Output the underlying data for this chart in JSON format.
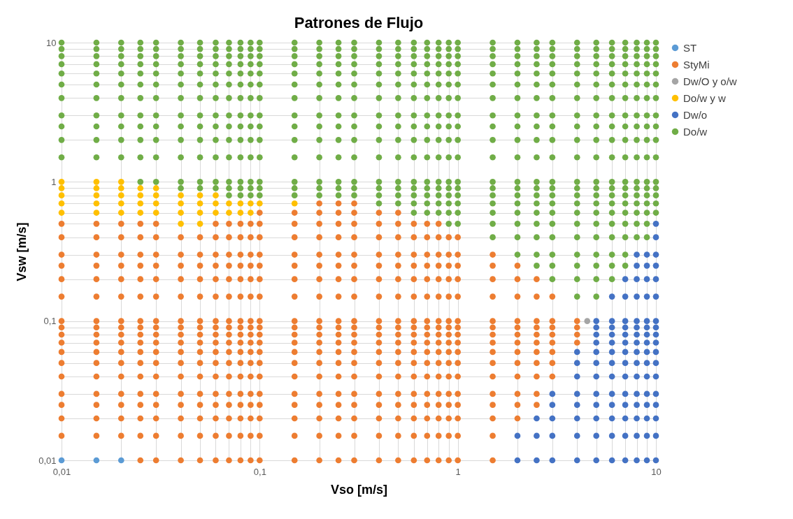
{
  "chart_data": {
    "type": "scatter",
    "title": "Patrones de Flujo",
    "xlabel": "Vso [m/s]",
    "ylabel": "Vsw [m/s]",
    "log": "xy",
    "grid": true,
    "legend": "right",
    "marker": "circle",
    "xlim": [
      0.01,
      10
    ],
    "ylim": [
      0.01,
      10
    ],
    "xticks": [
      {
        "value": 0.01,
        "label": "0,01"
      },
      {
        "value": 0.02,
        "label": null
      },
      {
        "value": 0.03,
        "label": null
      },
      {
        "value": 0.04,
        "label": null
      },
      {
        "value": 0.05,
        "label": null
      },
      {
        "value": 0.06,
        "label": null
      },
      {
        "value": 0.07,
        "label": null
      },
      {
        "value": 0.08,
        "label": null
      },
      {
        "value": 0.09,
        "label": null
      },
      {
        "value": 0.1,
        "label": "0,1"
      },
      {
        "value": 0.2,
        "label": null
      },
      {
        "value": 0.3,
        "label": null
      },
      {
        "value": 0.4,
        "label": null
      },
      {
        "value": 0.5,
        "label": null
      },
      {
        "value": 0.6,
        "label": null
      },
      {
        "value": 0.7,
        "label": null
      },
      {
        "value": 0.8,
        "label": null
      },
      {
        "value": 0.9,
        "label": null
      },
      1,
      {
        "value": 2,
        "label": null
      },
      {
        "value": 3,
        "label": null
      },
      {
        "value": 4,
        "label": null
      },
      {
        "value": 5,
        "label": null
      },
      {
        "value": 6,
        "label": null
      },
      {
        "value": 7,
        "label": null
      },
      {
        "value": 8,
        "label": null
      },
      {
        "value": 9,
        "label": null
      },
      10
    ],
    "yticks": [
      {
        "value": 0.01,
        "label": "0,01"
      },
      {
        "value": 0.02,
        "label": null
      },
      {
        "value": 0.03,
        "label": null
      },
      {
        "value": 0.04,
        "label": null
      },
      {
        "value": 0.05,
        "label": null
      },
      {
        "value": 0.06,
        "label": null
      },
      {
        "value": 0.07,
        "label": null
      },
      {
        "value": 0.08,
        "label": null
      },
      {
        "value": 0.09,
        "label": null
      },
      {
        "value": 0.1,
        "label": "0,1"
      },
      {
        "value": 0.2,
        "label": null
      },
      {
        "value": 0.3,
        "label": null
      },
      {
        "value": 0.4,
        "label": null
      },
      {
        "value": 0.5,
        "label": null
      },
      {
        "value": 0.6,
        "label": null
      },
      {
        "value": 0.7,
        "label": null
      },
      {
        "value": 0.8,
        "label": null
      },
      {
        "value": 0.9,
        "label": null
      },
      1,
      {
        "value": 2,
        "label": null
      },
      {
        "value": 3,
        "label": null
      },
      {
        "value": 4,
        "label": null
      },
      {
        "value": 5,
        "label": null
      },
      {
        "value": 6,
        "label": null
      },
      {
        "value": 7,
        "label": null
      },
      {
        "value": 8,
        "label": null
      },
      {
        "value": 9,
        "label": null
      },
      10
    ],
    "series": [
      {
        "name": "ST",
        "color": "#5b9bd5",
        "x": [
          0.01,
          0.015,
          0.02
        ],
        "values": [
          0.01,
          0.01,
          0.01
        ]
      },
      {
        "name": "StyMi",
        "color": "#ed7d31",
        "x": [
          0.01,
          0.01,
          0.01,
          0.01,
          0.01,
          0.01,
          0.01,
          0.01,
          0.01,
          0.01,
          0.01,
          0.01,
          0.01,
          0.01,
          0.01,
          0.01,
          0.01,
          0.015,
          0.015,
          0.015,
          0.015,
          0.015,
          0.015,
          0.015,
          0.015,
          0.015,
          0.015,
          0.015,
          0.015,
          0.015,
          0.015,
          0.015,
          0.015,
          0.015,
          0.02,
          0.02,
          0.02,
          0.02,
          0.02,
          0.02,
          0.02,
          0.02,
          0.02,
          0.02,
          0.02,
          0.02,
          0.02,
          0.02,
          0.02,
          0.02,
          0.02,
          0.025,
          0.025,
          0.025,
          0.025,
          0.025,
          0.025,
          0.025,
          0.025,
          0.025,
          0.025,
          0.025,
          0.025,
          0.025,
          0.025,
          0.025,
          0.025,
          0.025,
          0.025,
          0.03,
          0.03,
          0.03,
          0.03,
          0.03,
          0.03,
          0.03,
          0.03,
          0.03,
          0.03,
          0.03,
          0.03,
          0.03,
          0.03,
          0.03,
          0.03,
          0.03,
          0.03,
          0.04,
          0.04,
          0.04,
          0.04,
          0.04,
          0.04,
          0.04,
          0.04,
          0.04,
          0.04,
          0.04,
          0.04,
          0.04,
          0.04,
          0.04,
          0.04,
          0.04,
          0.05,
          0.05,
          0.05,
          0.05,
          0.05,
          0.05,
          0.05,
          0.05,
          0.05,
          0.05,
          0.05,
          0.05,
          0.05,
          0.05,
          0.05,
          0.05,
          0.05,
          0.06,
          0.06,
          0.06,
          0.06,
          0.06,
          0.06,
          0.06,
          0.06,
          0.06,
          0.06,
          0.06,
          0.06,
          0.06,
          0.06,
          0.06,
          0.06,
          0.06,
          0.06,
          0.07,
          0.07,
          0.07,
          0.07,
          0.07,
          0.07,
          0.07,
          0.07,
          0.07,
          0.07,
          0.07,
          0.07,
          0.07,
          0.07,
          0.07,
          0.07,
          0.07,
          0.07,
          0.08,
          0.08,
          0.08,
          0.08,
          0.08,
          0.08,
          0.08,
          0.08,
          0.08,
          0.08,
          0.08,
          0.08,
          0.08,
          0.08,
          0.08,
          0.08,
          0.08,
          0.08,
          0.09,
          0.09,
          0.09,
          0.09,
          0.09,
          0.09,
          0.09,
          0.09,
          0.09,
          0.09,
          0.09,
          0.09,
          0.09,
          0.09,
          0.09,
          0.09,
          0.09,
          0.09,
          0.1,
          0.1,
          0.1,
          0.1,
          0.1,
          0.1,
          0.1,
          0.1,
          0.1,
          0.1,
          0.1,
          0.1,
          0.1,
          0.1,
          0.1,
          0.1,
          0.1,
          0.1,
          0.1,
          0.15,
          0.15,
          0.15,
          0.15,
          0.15,
          0.15,
          0.15,
          0.15,
          0.15,
          0.15,
          0.15,
          0.15,
          0.15,
          0.15,
          0.15,
          0.15,
          0.15,
          0.15,
          0.15,
          0.2,
          0.2,
          0.2,
          0.2,
          0.2,
          0.2,
          0.2,
          0.2,
          0.2,
          0.2,
          0.2,
          0.2,
          0.2,
          0.2,
          0.2,
          0.2,
          0.2,
          0.2,
          0.2,
          0.2,
          0.25,
          0.25,
          0.25,
          0.25,
          0.25,
          0.25,
          0.25,
          0.25,
          0.25,
          0.25,
          0.25,
          0.25,
          0.25,
          0.25,
          0.25,
          0.25,
          0.25,
          0.25,
          0.25,
          0.25,
          0.3,
          0.3,
          0.3,
          0.3,
          0.3,
          0.3,
          0.3,
          0.3,
          0.3,
          0.3,
          0.3,
          0.3,
          0.3,
          0.3,
          0.3,
          0.3,
          0.3,
          0.3,
          0.3,
          0.3,
          0.4,
          0.4,
          0.4,
          0.4,
          0.4,
          0.4,
          0.4,
          0.4,
          0.4,
          0.4,
          0.4,
          0.4,
          0.4,
          0.4,
          0.4,
          0.4,
          0.4,
          0.4,
          0.4,
          0.5,
          0.5,
          0.5,
          0.5,
          0.5,
          0.5,
          0.5,
          0.5,
          0.5,
          0.5,
          0.5,
          0.5,
          0.5,
          0.5,
          0.5,
          0.5,
          0.5,
          0.5,
          0.5,
          0.6,
          0.6,
          0.6,
          0.6,
          0.6,
          0.6,
          0.6,
          0.6,
          0.6,
          0.6,
          0.6,
          0.6,
          0.6,
          0.6,
          0.6,
          0.6,
          0.6,
          0.6,
          0.7,
          0.7,
          0.7,
          0.7,
          0.7,
          0.7,
          0.7,
          0.7,
          0.7,
          0.7,
          0.7,
          0.7,
          0.7,
          0.7,
          0.7,
          0.7,
          0.7,
          0.7,
          0.8,
          0.8,
          0.8,
          0.8,
          0.8,
          0.8,
          0.8,
          0.8,
          0.8,
          0.8,
          0.8,
          0.8,
          0.8,
          0.8,
          0.8,
          0.8,
          0.8,
          0.8,
          0.9,
          0.9,
          0.9,
          0.9,
          0.9,
          0.9,
          0.9,
          0.9,
          0.9,
          0.9,
          0.9,
          0.9,
          0.9,
          0.9,
          0.9,
          0.9,
          0.9,
          1,
          1,
          1,
          1,
          1,
          1,
          1,
          1,
          1,
          1,
          1,
          1,
          1,
          1,
          1,
          1,
          1,
          1.5,
          1.5,
          1.5,
          1.5,
          1.5,
          1.5,
          1.5,
          1.5,
          1.5,
          1.5,
          1.5,
          1.5,
          1.5,
          1.5,
          1.5,
          1.5,
          2,
          2,
          2,
          2,
          2,
          2,
          2,
          2,
          2,
          2,
          2,
          2,
          2,
          2.5,
          2.5,
          2.5,
          2.5,
          2.5,
          2.5,
          2.5,
          2.5,
          2.5,
          2.5,
          2.5,
          3,
          3,
          3,
          3,
          3,
          3,
          3,
          3,
          4,
          4,
          4,
          4
        ],
        "values": [
          0.015,
          0.02,
          0.025,
          0.03,
          0.04,
          0.05,
          0.06,
          0.07,
          0.08,
          0.09,
          0.1,
          0.15,
          0.2,
          0.25,
          0.3,
          0.4,
          0.5,
          0.015,
          0.02,
          0.025,
          0.03,
          0.04,
          0.05,
          0.06,
          0.07,
          0.08,
          0.09,
          0.1,
          0.15,
          0.2,
          0.25,
          0.3,
          0.4,
          0.5,
          0.015,
          0.02,
          0.025,
          0.03,
          0.04,
          0.05,
          0.06,
          0.07,
          0.08,
          0.09,
          0.1,
          0.15,
          0.2,
          0.25,
          0.3,
          0.4,
          0.5,
          0.01,
          0.015,
          0.02,
          0.025,
          0.03,
          0.04,
          0.05,
          0.06,
          0.07,
          0.08,
          0.09,
          0.1,
          0.15,
          0.2,
          0.25,
          0.3,
          0.4,
          0.5,
          0.01,
          0.015,
          0.02,
          0.025,
          0.03,
          0.04,
          0.05,
          0.06,
          0.07,
          0.08,
          0.09,
          0.1,
          0.15,
          0.2,
          0.25,
          0.3,
          0.4,
          0.5,
          0.01,
          0.015,
          0.02,
          0.025,
          0.03,
          0.04,
          0.05,
          0.06,
          0.07,
          0.08,
          0.09,
          0.1,
          0.15,
          0.2,
          0.25,
          0.3,
          0.4,
          0.01,
          0.015,
          0.02,
          0.025,
          0.03,
          0.04,
          0.05,
          0.06,
          0.07,
          0.08,
          0.09,
          0.1,
          0.15,
          0.2,
          0.25,
          0.3,
          0.4,
          0.01,
          0.015,
          0.02,
          0.025,
          0.03,
          0.04,
          0.05,
          0.06,
          0.07,
          0.08,
          0.09,
          0.1,
          0.15,
          0.2,
          0.25,
          0.3,
          0.4,
          0.5,
          0.01,
          0.015,
          0.02,
          0.025,
          0.03,
          0.04,
          0.05,
          0.06,
          0.07,
          0.08,
          0.09,
          0.1,
          0.15,
          0.2,
          0.25,
          0.3,
          0.4,
          0.5,
          0.01,
          0.015,
          0.02,
          0.025,
          0.03,
          0.04,
          0.05,
          0.06,
          0.07,
          0.08,
          0.09,
          0.1,
          0.15,
          0.2,
          0.25,
          0.3,
          0.4,
          0.5,
          0.01,
          0.015,
          0.02,
          0.025,
          0.03,
          0.04,
          0.05,
          0.06,
          0.07,
          0.08,
          0.09,
          0.1,
          0.15,
          0.2,
          0.25,
          0.3,
          0.4,
          0.5,
          0.01,
          0.015,
          0.02,
          0.025,
          0.03,
          0.04,
          0.05,
          0.06,
          0.07,
          0.08,
          0.09,
          0.1,
          0.15,
          0.2,
          0.25,
          0.3,
          0.4,
          0.5,
          0.6,
          0.01,
          0.015,
          0.02,
          0.025,
          0.03,
          0.04,
          0.05,
          0.06,
          0.07,
          0.08,
          0.09,
          0.1,
          0.15,
          0.2,
          0.25,
          0.3,
          0.4,
          0.5,
          0.6,
          0.01,
          0.015,
          0.02,
          0.025,
          0.03,
          0.04,
          0.05,
          0.06,
          0.07,
          0.08,
          0.09,
          0.1,
          0.15,
          0.2,
          0.25,
          0.3,
          0.4,
          0.5,
          0.6,
          0.7,
          0.01,
          0.015,
          0.02,
          0.025,
          0.03,
          0.04,
          0.05,
          0.06,
          0.07,
          0.08,
          0.09,
          0.1,
          0.15,
          0.2,
          0.25,
          0.3,
          0.4,
          0.5,
          0.6,
          0.7,
          0.01,
          0.015,
          0.02,
          0.025,
          0.03,
          0.04,
          0.05,
          0.06,
          0.07,
          0.08,
          0.09,
          0.1,
          0.15,
          0.2,
          0.25,
          0.3,
          0.4,
          0.5,
          0.6,
          0.7,
          0.01,
          0.015,
          0.02,
          0.025,
          0.03,
          0.04,
          0.05,
          0.06,
          0.07,
          0.08,
          0.09,
          0.1,
          0.15,
          0.2,
          0.25,
          0.3,
          0.4,
          0.5,
          0.6,
          0.01,
          0.015,
          0.02,
          0.025,
          0.03,
          0.04,
          0.05,
          0.06,
          0.07,
          0.08,
          0.09,
          0.1,
          0.15,
          0.2,
          0.25,
          0.3,
          0.4,
          0.5,
          0.6,
          0.01,
          0.015,
          0.02,
          0.025,
          0.03,
          0.04,
          0.05,
          0.06,
          0.07,
          0.08,
          0.09,
          0.1,
          0.15,
          0.2,
          0.25,
          0.3,
          0.4,
          0.5,
          0.01,
          0.015,
          0.02,
          0.025,
          0.03,
          0.04,
          0.05,
          0.06,
          0.07,
          0.08,
          0.09,
          0.1,
          0.15,
          0.2,
          0.25,
          0.3,
          0.4,
          0.5,
          0.01,
          0.015,
          0.02,
          0.025,
          0.03,
          0.04,
          0.05,
          0.06,
          0.07,
          0.08,
          0.09,
          0.1,
          0.15,
          0.2,
          0.25,
          0.3,
          0.4,
          0.5,
          0.01,
          0.015,
          0.02,
          0.025,
          0.03,
          0.04,
          0.05,
          0.06,
          0.07,
          0.08,
          0.09,
          0.1,
          0.15,
          0.2,
          0.25,
          0.3,
          0.4,
          0.01,
          0.015,
          0.02,
          0.025,
          0.03,
          0.04,
          0.05,
          0.06,
          0.07,
          0.08,
          0.09,
          0.1,
          0.15,
          0.2,
          0.25,
          0.3,
          0.4,
          0.01,
          0.015,
          0.02,
          0.025,
          0.03,
          0.04,
          0.05,
          0.06,
          0.07,
          0.08,
          0.09,
          0.1,
          0.15,
          0.2,
          0.25,
          0.3,
          0.02,
          0.025,
          0.03,
          0.04,
          0.05,
          0.06,
          0.07,
          0.08,
          0.09,
          0.1,
          0.15,
          0.2,
          0.25,
          0.025,
          0.03,
          0.04,
          0.05,
          0.06,
          0.07,
          0.08,
          0.09,
          0.1,
          0.15,
          0.2,
          0.04,
          0.05,
          0.06,
          0.07,
          0.08,
          0.09,
          0.1,
          0.15,
          0.07,
          0.08,
          0.09,
          0.1
        ]
      },
      {
        "name": "Dw/O y o/w",
        "color": "#a5a5a5",
        "x": [
          4.5
        ],
        "values": [
          0.1
        ]
      },
      {
        "name": "Do/w y w",
        "color": "#ffc000",
        "x": [
          0.01,
          0.01,
          0.01,
          0.01,
          0.01,
          0.015,
          0.015,
          0.015,
          0.015,
          0.015,
          0.02,
          0.02,
          0.02,
          0.02,
          0.02,
          0.025,
          0.025,
          0.025,
          0.025,
          0.03,
          0.03,
          0.03,
          0.03,
          0.04,
          0.04,
          0.04,
          0.04,
          0.05,
          0.05,
          0.05,
          0.05,
          0.06,
          0.06,
          0.06,
          0.07,
          0.07,
          0.08,
          0.08,
          0.09,
          0.09,
          0.1,
          0.15
        ],
        "values": [
          0.6,
          0.7,
          0.8,
          0.9,
          1,
          0.6,
          0.7,
          0.8,
          0.9,
          1,
          0.6,
          0.7,
          0.8,
          0.9,
          1,
          0.6,
          0.7,
          0.8,
          0.9,
          0.6,
          0.7,
          0.8,
          0.9,
          0.5,
          0.6,
          0.7,
          0.8,
          0.5,
          0.6,
          0.7,
          0.8,
          0.6,
          0.7,
          0.8,
          0.6,
          0.7,
          0.6,
          0.7,
          0.6,
          0.7,
          0.7,
          0.7
        ]
      },
      {
        "name": "Dw/o",
        "color": "#4472c4",
        "x": [
          2,
          2,
          2.5,
          2.5,
          2.5,
          3,
          3,
          3,
          3,
          3,
          4,
          4,
          4,
          4,
          4,
          4,
          4,
          4,
          5,
          5,
          5,
          5,
          5,
          5,
          5,
          5,
          5,
          5,
          5,
          5,
          6,
          6,
          6,
          6,
          6,
          6,
          6,
          6,
          6,
          6,
          6,
          6,
          6,
          7,
          7,
          7,
          7,
          7,
          7,
          7,
          7,
          7,
          7,
          7,
          7,
          7,
          7,
          8,
          8,
          8,
          8,
          8,
          8,
          8,
          8,
          8,
          8,
          8,
          8,
          8,
          8,
          8,
          8,
          9,
          9,
          9,
          9,
          9,
          9,
          9,
          9,
          9,
          9,
          9,
          9,
          9,
          9,
          9,
          9,
          10,
          10,
          10,
          10,
          10,
          10,
          10,
          10,
          10,
          10,
          10,
          10,
          10,
          10,
          10,
          10,
          10,
          10
        ],
        "values": [
          0.01,
          0.015,
          0.01,
          0.015,
          0.02,
          0.01,
          0.015,
          0.02,
          0.025,
          0.03,
          0.01,
          0.015,
          0.02,
          0.025,
          0.03,
          0.04,
          0.05,
          0.06,
          0.01,
          0.015,
          0.02,
          0.025,
          0.03,
          0.04,
          0.05,
          0.06,
          0.07,
          0.08,
          0.09,
          0.1,
          0.01,
          0.015,
          0.02,
          0.025,
          0.03,
          0.04,
          0.05,
          0.06,
          0.07,
          0.08,
          0.09,
          0.1,
          0.15,
          0.01,
          0.015,
          0.02,
          0.025,
          0.03,
          0.04,
          0.05,
          0.06,
          0.07,
          0.08,
          0.09,
          0.1,
          0.15,
          0.2,
          0.01,
          0.015,
          0.02,
          0.025,
          0.03,
          0.04,
          0.05,
          0.06,
          0.07,
          0.08,
          0.09,
          0.1,
          0.15,
          0.2,
          0.25,
          0.3,
          0.01,
          0.015,
          0.02,
          0.025,
          0.03,
          0.04,
          0.05,
          0.06,
          0.07,
          0.08,
          0.09,
          0.1,
          0.15,
          0.2,
          0.25,
          0.3,
          0.01,
          0.015,
          0.02,
          0.025,
          0.03,
          0.04,
          0.05,
          0.06,
          0.07,
          0.08,
          0.09,
          0.1,
          0.15,
          0.2,
          0.25,
          0.3,
          0.4,
          0.5
        ]
      },
      {
        "name": "Do/w",
        "color": "#70ad47",
        "x": [
          0.01,
          0.01,
          0.01,
          0.01,
          0.01,
          0.01,
          0.01,
          0.01,
          0.01,
          0.01,
          0.01,
          0.015,
          0.015,
          0.015,
          0.015,
          0.015,
          0.015,
          0.015,
          0.015,
          0.015,
          0.015,
          0.015,
          0.02,
          0.02,
          0.02,
          0.02,
          0.02,
          0.02,
          0.02,
          0.02,
          0.02,
          0.02,
          0.02,
          0.025,
          0.025,
          0.025,
          0.025,
          0.025,
          0.025,
          0.025,
          0.025,
          0.025,
          0.025,
          0.025,
          0.025,
          0.03,
          0.03,
          0.03,
          0.03,
          0.03,
          0.03,
          0.03,
          0.03,
          0.03,
          0.03,
          0.03,
          0.03,
          0.04,
          0.04,
          0.04,
          0.04,
          0.04,
          0.04,
          0.04,
          0.04,
          0.04,
          0.04,
          0.04,
          0.04,
          0.04,
          0.05,
          0.05,
          0.05,
          0.05,
          0.05,
          0.05,
          0.05,
          0.05,
          0.05,
          0.05,
          0.05,
          0.05,
          0.05,
          0.06,
          0.06,
          0.06,
          0.06,
          0.06,
          0.06,
          0.06,
          0.06,
          0.06,
          0.06,
          0.06,
          0.06,
          0.06,
          0.07,
          0.07,
          0.07,
          0.07,
          0.07,
          0.07,
          0.07,
          0.07,
          0.07,
          0.07,
          0.07,
          0.07,
          0.07,
          0.07,
          0.08,
          0.08,
          0.08,
          0.08,
          0.08,
          0.08,
          0.08,
          0.08,
          0.08,
          0.08,
          0.08,
          0.08,
          0.08,
          0.08,
          0.09,
          0.09,
          0.09,
          0.09,
          0.09,
          0.09,
          0.09,
          0.09,
          0.09,
          0.09,
          0.09,
          0.09,
          0.09,
          0.09,
          0.1,
          0.1,
          0.1,
          0.1,
          0.1,
          0.1,
          0.1,
          0.1,
          0.1,
          0.1,
          0.1,
          0.1,
          0.1,
          0.1,
          0.15,
          0.15,
          0.15,
          0.15,
          0.15,
          0.15,
          0.15,
          0.15,
          0.15,
          0.15,
          0.15,
          0.15,
          0.15,
          0.15,
          0.2,
          0.2,
          0.2,
          0.2,
          0.2,
          0.2,
          0.2,
          0.2,
          0.2,
          0.2,
          0.2,
          0.2,
          0.2,
          0.2,
          0.25,
          0.25,
          0.25,
          0.25,
          0.25,
          0.25,
          0.25,
          0.25,
          0.25,
          0.25,
          0.25,
          0.25,
          0.25,
          0.25,
          0.3,
          0.3,
          0.3,
          0.3,
          0.3,
          0.3,
          0.3,
          0.3,
          0.3,
          0.3,
          0.3,
          0.3,
          0.3,
          0.3,
          0.4,
          0.4,
          0.4,
          0.4,
          0.4,
          0.4,
          0.4,
          0.4,
          0.4,
          0.4,
          0.4,
          0.4,
          0.4,
          0.4,
          0.4,
          0.5,
          0.5,
          0.5,
          0.5,
          0.5,
          0.5,
          0.5,
          0.5,
          0.5,
          0.5,
          0.5,
          0.5,
          0.5,
          0.5,
          0.5,
          0.6,
          0.6,
          0.6,
          0.6,
          0.6,
          0.6,
          0.6,
          0.6,
          0.6,
          0.6,
          0.6,
          0.6,
          0.6,
          0.6,
          0.6,
          0.6,
          0.7,
          0.7,
          0.7,
          0.7,
          0.7,
          0.7,
          0.7,
          0.7,
          0.7,
          0.7,
          0.7,
          0.7,
          0.7,
          0.7,
          0.7,
          0.7,
          0.8,
          0.8,
          0.8,
          0.8,
          0.8,
          0.8,
          0.8,
          0.8,
          0.8,
          0.8,
          0.8,
          0.8,
          0.8,
          0.8,
          0.8,
          0.8,
          0.9,
          0.9,
          0.9,
          0.9,
          0.9,
          0.9,
          0.9,
          0.9,
          0.9,
          0.9,
          0.9,
          0.9,
          0.9,
          0.9,
          0.9,
          0.9,
          0.9,
          1,
          1,
          1,
          1,
          1,
          1,
          1,
          1,
          1,
          1,
          1,
          1,
          1,
          1,
          1,
          1,
          1,
          1.5,
          1.5,
          1.5,
          1.5,
          1.5,
          1.5,
          1.5,
          1.5,
          1.5,
          1.5,
          1.5,
          1.5,
          1.5,
          1.5,
          1.5,
          1.5,
          1.5,
          1.5,
          2,
          2,
          2,
          2,
          2,
          2,
          2,
          2,
          2,
          2,
          2,
          2,
          2,
          2,
          2,
          2,
          2,
          2,
          2,
          2.5,
          2.5,
          2.5,
          2.5,
          2.5,
          2.5,
          2.5,
          2.5,
          2.5,
          2.5,
          2.5,
          2.5,
          2.5,
          2.5,
          2.5,
          2.5,
          2.5,
          2.5,
          2.5,
          2.5,
          3,
          3,
          3,
          3,
          3,
          3,
          3,
          3,
          3,
          3,
          3,
          3,
          3,
          3,
          3,
          3,
          3,
          3,
          3,
          3,
          3,
          4,
          4,
          4,
          4,
          4,
          4,
          4,
          4,
          4,
          4,
          4,
          4,
          4,
          4,
          4,
          4,
          4,
          4,
          4,
          4,
          4,
          4,
          5,
          5,
          5,
          5,
          5,
          5,
          5,
          5,
          5,
          5,
          5,
          5,
          5,
          5,
          5,
          5,
          5,
          5,
          5,
          5,
          5,
          5,
          6,
          6,
          6,
          6,
          6,
          6,
          6,
          6,
          6,
          6,
          6,
          6,
          6,
          6,
          6,
          6,
          6,
          6,
          6,
          6,
          6,
          7,
          7,
          7,
          7,
          7,
          7,
          7,
          7,
          7,
          7,
          7,
          7,
          7,
          7,
          7,
          7,
          7,
          7,
          7,
          7,
          8,
          8,
          8,
          8,
          8,
          8,
          8,
          8,
          8,
          8,
          8,
          8,
          8,
          8,
          8,
          8,
          8,
          8,
          9,
          9,
          9,
          9,
          9,
          9,
          9,
          9,
          9,
          9,
          9,
          9,
          9,
          9,
          9,
          9,
          9,
          9,
          10,
          10,
          10,
          10,
          10,
          10,
          10,
          10,
          10,
          10,
          10,
          10,
          10,
          10,
          10,
          10
        ],
        "values": [
          1.5,
          2,
          2.5,
          3,
          4,
          5,
          6,
          7,
          8,
          9,
          10,
          1.5,
          2,
          2.5,
          3,
          4,
          5,
          6,
          7,
          8,
          9,
          10,
          1.5,
          2,
          2.5,
          3,
          4,
          5,
          6,
          7,
          8,
          9,
          10,
          1,
          1.5,
          2,
          2.5,
          3,
          4,
          5,
          6,
          7,
          8,
          9,
          10,
          1,
          1.5,
          2,
          2.5,
          3,
          4,
          5,
          6,
          7,
          8,
          9,
          10,
          0.9,
          1,
          1.5,
          2,
          2.5,
          3,
          4,
          5,
          6,
          7,
          8,
          9,
          10,
          0.9,
          1,
          1.5,
          2,
          2.5,
          3,
          4,
          5,
          6,
          7,
          8,
          9,
          10,
          0.9,
          1,
          1.5,
          2,
          2.5,
          3,
          4,
          5,
          6,
          7,
          8,
          9,
          10,
          0.8,
          0.9,
          1,
          1.5,
          2,
          2.5,
          3,
          4,
          5,
          6,
          7,
          8,
          9,
          10,
          0.8,
          0.9,
          1,
          1.5,
          2,
          2.5,
          3,
          4,
          5,
          6,
          7,
          8,
          9,
          10,
          0.8,
          0.9,
          1,
          1.5,
          2,
          2.5,
          3,
          4,
          5,
          6,
          7,
          8,
          9,
          10,
          0.8,
          0.9,
          1,
          1.5,
          2,
          2.5,
          3,
          4,
          5,
          6,
          7,
          8,
          9,
          10,
          0.8,
          0.9,
          1,
          1.5,
          2,
          2.5,
          3,
          4,
          5,
          6,
          7,
          8,
          9,
          10,
          0.8,
          0.9,
          1,
          1.5,
          2,
          2.5,
          3,
          4,
          5,
          6,
          7,
          8,
          9,
          10,
          0.8,
          0.9,
          1,
          1.5,
          2,
          2.5,
          3,
          4,
          5,
          6,
          7,
          8,
          9,
          10,
          0.8,
          0.9,
          1,
          1.5,
          2,
          2.5,
          3,
          4,
          5,
          6,
          7,
          8,
          9,
          10,
          0.7,
          0.8,
          0.9,
          1,
          1.5,
          2,
          2.5,
          3,
          4,
          5,
          6,
          7,
          8,
          9,
          10,
          0.7,
          0.8,
          0.9,
          1,
          1.5,
          2,
          2.5,
          3,
          4,
          5,
          6,
          7,
          8,
          9,
          10,
          0.6,
          0.7,
          0.8,
          0.9,
          1,
          1.5,
          2,
          2.5,
          3,
          4,
          5,
          6,
          7,
          8,
          9,
          10,
          0.6,
          0.7,
          0.8,
          0.9,
          1,
          1.5,
          2,
          2.5,
          3,
          4,
          5,
          6,
          7,
          8,
          9,
          10,
          0.6,
          0.7,
          0.8,
          0.9,
          1,
          1.5,
          2,
          2.5,
          3,
          4,
          5,
          6,
          7,
          8,
          9,
          10,
          0.5,
          0.6,
          0.7,
          0.8,
          0.9,
          1,
          1.5,
          2,
          2.5,
          3,
          4,
          5,
          6,
          7,
          8,
          9,
          10,
          0.5,
          0.6,
          0.7,
          0.8,
          0.9,
          1,
          1.5,
          2,
          2.5,
          3,
          4,
          5,
          6,
          7,
          8,
          9,
          10,
          0.4,
          0.5,
          0.6,
          0.7,
          0.8,
          0.9,
          1,
          1.5,
          2,
          2.5,
          3,
          4,
          5,
          6,
          7,
          8,
          9,
          10,
          0.3,
          0.4,
          0.5,
          0.6,
          0.7,
          0.8,
          0.9,
          1,
          1.5,
          2,
          2.5,
          3,
          4,
          5,
          6,
          7,
          8,
          9,
          10,
          0.25,
          0.3,
          0.4,
          0.5,
          0.6,
          0.7,
          0.8,
          0.9,
          1,
          1.5,
          2,
          2.5,
          3,
          4,
          5,
          6,
          7,
          8,
          9,
          10,
          0.2,
          0.25,
          0.3,
          0.4,
          0.5,
          0.6,
          0.7,
          0.8,
          0.9,
          1,
          1.5,
          2,
          2.5,
          3,
          4,
          5,
          6,
          7,
          8,
          9,
          10,
          0.15,
          0.2,
          0.25,
          0.3,
          0.4,
          0.5,
          0.6,
          0.7,
          0.8,
          0.9,
          1,
          1.5,
          2,
          2.5,
          3,
          4,
          5,
          6,
          7,
          8,
          9,
          10,
          0.15,
          0.2,
          0.25,
          0.3,
          0.4,
          0.5,
          0.6,
          0.7,
          0.8,
          0.9,
          1,
          1.5,
          2,
          2.5,
          3,
          4,
          5,
          6,
          7,
          8,
          9,
          10,
          0.2,
          0.25,
          0.3,
          0.4,
          0.5,
          0.6,
          0.7,
          0.8,
          0.9,
          1,
          1.5,
          2,
          2.5,
          3,
          4,
          5,
          6,
          7,
          8,
          9,
          10,
          0.25,
          0.3,
          0.4,
          0.5,
          0.6,
          0.7,
          0.8,
          0.9,
          1,
          1.5,
          2,
          2.5,
          3,
          4,
          5,
          6,
          7,
          8,
          9,
          10,
          0.4,
          0.5,
          0.6,
          0.7,
          0.8,
          0.9,
          1,
          1.5,
          2,
          2.5,
          3,
          4,
          5,
          6,
          7,
          8,
          9,
          10,
          0.4,
          0.5,
          0.6,
          0.7,
          0.8,
          0.9,
          1,
          1.5,
          2,
          2.5,
          3,
          4,
          5,
          6,
          7,
          8,
          9,
          10,
          0.6,
          0.7,
          0.8,
          0.9,
          1,
          1.5,
          2,
          2.5,
          3,
          4,
          5,
          6,
          7,
          8,
          9,
          10
        ]
      }
    ]
  }
}
